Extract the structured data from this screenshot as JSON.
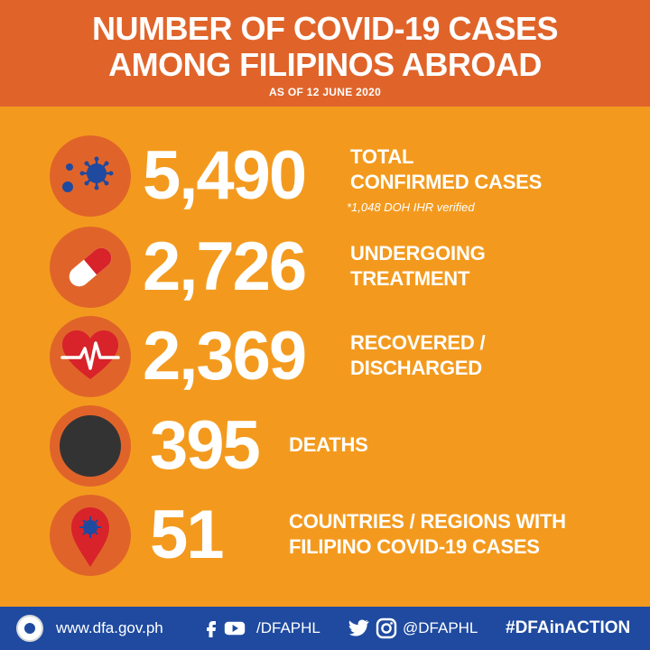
{
  "header": {
    "title_line1": "NUMBER OF COVID-19 CASES",
    "title_line2": "AMONG FILIPINOS ABROAD",
    "subtitle": "AS OF 12 JUNE 2020"
  },
  "stats": [
    {
      "value": "5,490",
      "label_line1": "TOTAL",
      "label_line2": "CONFIRMED CASES",
      "note": "*1,048 DOH IHR verified",
      "icon": "virus-icon"
    },
    {
      "value": "2,726",
      "label_line1": "UNDERGOING",
      "label_line2": "TREATMENT",
      "icon": "pill-icon"
    },
    {
      "value": "2,369",
      "label_line1": "RECOVERED /",
      "label_line2": "DISCHARGED",
      "icon": "heartbeat-icon"
    },
    {
      "value": "395",
      "label_line1": "DEATHS",
      "icon": "black-circle-icon"
    },
    {
      "value": "51",
      "label_line1": "COUNTRIES / REGIONS WITH",
      "label_line2": "FILIPINO COVID-19 CASES",
      "icon": "map-pin-virus-icon"
    }
  ],
  "footer": {
    "website": "www.dfa.gov.ph",
    "facebook_youtube_handle": "/DFAPHL",
    "twitter_instagram_handle": "@DFAPHL",
    "hashtag": "#DFAinACTION"
  },
  "colors": {
    "background": "#f39a1e",
    "header": "#e0642a",
    "icon_circle": "#e0642a",
    "footer": "#1f4aa0",
    "text": "#ffffff"
  }
}
